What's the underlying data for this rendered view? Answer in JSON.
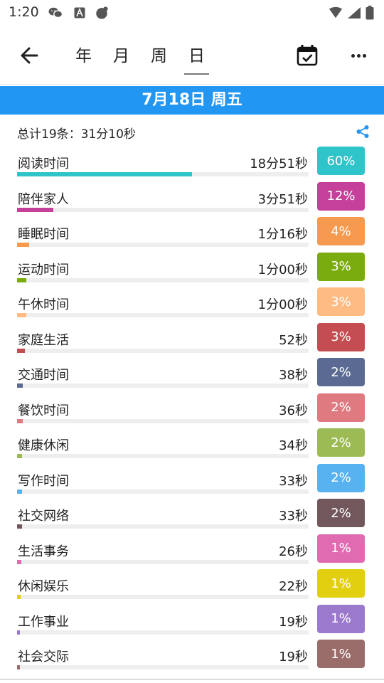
{
  "status_bar": {
    "time": "1:20",
    "icons": [
      "wechat-icon",
      "a-icon",
      "ghost-icon",
      "wifi-icon",
      "signal-icon",
      "battery-icon"
    ]
  },
  "toolbar": {
    "back_icon": "back-arrow-icon",
    "tabs": [
      {
        "label": "年",
        "active": false
      },
      {
        "label": "月",
        "active": false
      },
      {
        "label": "周",
        "active": false
      },
      {
        "label": "日",
        "active": true
      }
    ],
    "calendar_icon": "calendar-check-icon",
    "more_icon": "more-horizontal-icon"
  },
  "date_banner": {
    "text": "7月18日 周五",
    "color": "#2196f3"
  },
  "summary": {
    "text": "总计19条：31分10秒",
    "share_icon": "share-icon",
    "share_color": "#2196f3"
  },
  "rows": [
    {
      "label": "阅读时间",
      "duration": "18分51秒",
      "percent_label": "60%",
      "percent": 60,
      "color": "#2ec4c9"
    },
    {
      "label": "陪伴家人",
      "duration": "3分51秒",
      "percent_label": "12%",
      "percent": 12.4,
      "color": "#c4409a"
    },
    {
      "label": "睡眠时间",
      "duration": "1分16秒",
      "percent_label": "4%",
      "percent": 4.1,
      "color": "#f59a4e"
    },
    {
      "label": "运动时间",
      "duration": "1分00秒",
      "percent_label": "3%",
      "percent": 3.2,
      "color": "#7aac0f"
    },
    {
      "label": "午休时间",
      "duration": "1分00秒",
      "percent_label": "3%",
      "percent": 3.2,
      "color": "#ffbb84"
    },
    {
      "label": "家庭生活",
      "duration": "52秒",
      "percent_label": "3%",
      "percent": 2.8,
      "color": "#c34d50"
    },
    {
      "label": "交通时间",
      "duration": "38秒",
      "percent_label": "2%",
      "percent": 2.0,
      "color": "#5a6a92"
    },
    {
      "label": "餐饮时间",
      "duration": "36秒",
      "percent_label": "2%",
      "percent": 1.9,
      "color": "#de7a80"
    },
    {
      "label": "健康休闲",
      "duration": "34秒",
      "percent_label": "2%",
      "percent": 1.8,
      "color": "#9cbb54"
    },
    {
      "label": "写作时间",
      "duration": "33秒",
      "percent_label": "2%",
      "percent": 1.8,
      "color": "#59b2f0"
    },
    {
      "label": "社交网络",
      "duration": "33秒",
      "percent_label": "2%",
      "percent": 1.8,
      "color": "#72585c"
    },
    {
      "label": "生活事务",
      "duration": "26秒",
      "percent_label": "1%",
      "percent": 1.4,
      "color": "#e06bb0"
    },
    {
      "label": "休闲娱乐",
      "duration": "22秒",
      "percent_label": "1%",
      "percent": 1.2,
      "color": "#e2cf0f"
    },
    {
      "label": "工作事业",
      "duration": "19秒",
      "percent_label": "1%",
      "percent": 1.0,
      "color": "#9b79cc"
    },
    {
      "label": "社会交际",
      "duration": "19秒",
      "percent_label": "1%",
      "percent": 1.0,
      "color": "#9a6c6a"
    }
  ]
}
